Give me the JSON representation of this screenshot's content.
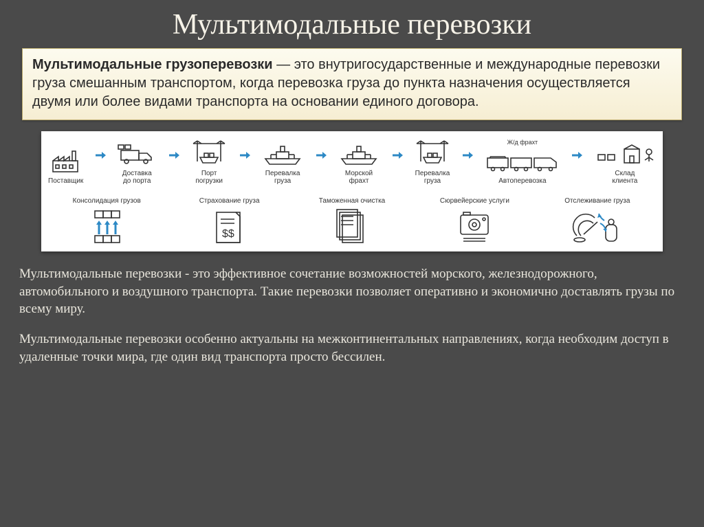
{
  "colors": {
    "bg": "#4a4a4a",
    "title": "#f7f3e8",
    "defbox_bg_top": "#fdfbef",
    "defbox_bg_bottom": "#f6eed3",
    "defbox_border": "#b9a96a",
    "diagram_bg": "#ffffff",
    "arrow": "#2d89c5",
    "icon_stroke": "#333333",
    "body_text": "#e9e6dc"
  },
  "title": "Мультимодальные перевозки",
  "definition": {
    "bold": "Мультимодальные грузоперевозки",
    "rest": " — это внутригосударственные и международные перевозки груза смешанным транспортом, когда перевозка груза до пункта назначения осуществляется двумя или более видами транспорта на основании единого договора."
  },
  "diagram": {
    "stages": [
      {
        "id": "supplier",
        "label": "Поставщик",
        "icon": "factory"
      },
      {
        "id": "delivery",
        "label": "Доставка\nдо порта",
        "icon": "truck"
      },
      {
        "id": "port",
        "label": "Порт\nпогрузки",
        "icon": "port"
      },
      {
        "id": "transfer1",
        "label": "Перевалка\nгруза",
        "icon": "ship"
      },
      {
        "id": "sea",
        "label": "Морской\nфрахт",
        "icon": "ship"
      },
      {
        "id": "transfer2",
        "label": "Перевалка\nгруза",
        "icon": "port"
      },
      {
        "id": "rail",
        "label": "Автоперевозка",
        "icon": "train",
        "sublabel": "Ж/д фрахт"
      },
      {
        "id": "client",
        "label": "Склад\nклиента",
        "icon": "warehouse"
      }
    ],
    "services": [
      {
        "id": "consolidation",
        "label": "Консолидация грузов",
        "icon": "consolidation"
      },
      {
        "id": "insurance",
        "label": "Страхование груза",
        "icon": "insurance"
      },
      {
        "id": "customs",
        "label": "Таможенная очистка",
        "icon": "customs"
      },
      {
        "id": "survey",
        "label": "Сюрвейерские услуги",
        "icon": "survey"
      },
      {
        "id": "tracking",
        "label": "Отслеживание груза",
        "icon": "tracking"
      }
    ]
  },
  "paragraphs": [
    "Мультимодальные перевозки - это эффективное сочетание возможностей морского, железнодорожного, автомобильного и воздушного транспорта. Такие перевозки позволяет оперативно и экономично доставлять грузы по всему миру.",
    "Мультимодальные перевозки особенно актуальны на межконтинентальных направлениях, когда необходим доступ в удаленные точки мира, где один вид транспорта просто бессилен."
  ]
}
